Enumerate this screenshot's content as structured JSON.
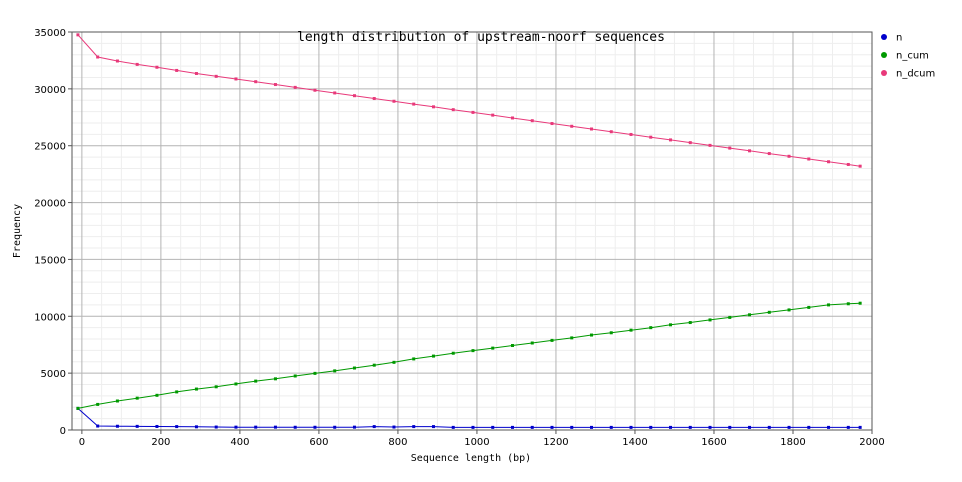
{
  "chart_data": {
    "type": "line",
    "title": "length distribution of upstream-noorf sequences",
    "xlabel": "Sequence length (bp)",
    "ylabel": "Frequency",
    "xlim": [
      -25,
      2000
    ],
    "ylim": [
      0,
      35000
    ],
    "x_ticks": [
      0,
      200,
      400,
      600,
      800,
      1000,
      1200,
      1400,
      1600,
      1800,
      2000
    ],
    "y_ticks": [
      0,
      5000,
      10000,
      15000,
      20000,
      25000,
      30000,
      35000
    ],
    "x_tick_labels": [
      "0",
      "200",
      "400",
      "600",
      "800",
      "1000",
      "1200",
      "1400",
      "1600",
      "1800",
      "2000"
    ],
    "y_tick_labels": [
      "0",
      "5000",
      "10000",
      "15000",
      "20000",
      "25000",
      "30000",
      "35000"
    ],
    "grid": true,
    "legend_position": "right",
    "x": [
      -10,
      40,
      90,
      140,
      190,
      240,
      290,
      340,
      390,
      440,
      490,
      540,
      590,
      640,
      690,
      740,
      790,
      840,
      890,
      940,
      990,
      1040,
      1090,
      1140,
      1190,
      1240,
      1290,
      1340,
      1390,
      1440,
      1490,
      1540,
      1590,
      1640,
      1690,
      1740,
      1790,
      1840,
      1890,
      1940,
      1970
    ],
    "series": [
      {
        "name": "n",
        "color": "#0000cc",
        "values": [
          1900,
          350,
          330,
          320,
          310,
          300,
          280,
          260,
          250,
          250,
          250,
          240,
          240,
          240,
          250,
          300,
          260,
          300,
          300,
          230,
          230,
          230,
          230,
          230,
          230,
          230,
          230,
          230,
          230,
          230,
          230,
          230,
          230,
          230,
          230,
          230,
          230,
          230,
          230,
          230,
          230
        ]
      },
      {
        "name": "n_cum",
        "color": "#009900",
        "values": [
          1900,
          2250,
          2550,
          2800,
          3050,
          3350,
          3600,
          3800,
          4050,
          4300,
          4500,
          4750,
          4980,
          5200,
          5450,
          5700,
          5950,
          6250,
          6500,
          6750,
          6980,
          7200,
          7430,
          7650,
          7880,
          8100,
          8350,
          8550,
          8780,
          9000,
          9250,
          9450,
          9680,
          9900,
          10130,
          10350,
          10560,
          10780,
          11000,
          11100,
          11150
        ]
      },
      {
        "name": "n_dcum",
        "color": "#e8397a",
        "values": [
          34750,
          32800,
          32450,
          32150,
          31900,
          31620,
          31350,
          31100,
          30870,
          30630,
          30380,
          30130,
          29880,
          29640,
          29400,
          29150,
          28910,
          28660,
          28420,
          28170,
          27930,
          27690,
          27440,
          27200,
          26950,
          26710,
          26470,
          26230,
          25990,
          25750,
          25510,
          25270,
          25030,
          24790,
          24550,
          24310,
          24070,
          23830,
          23590,
          23350,
          23200
        ]
      }
    ]
  }
}
